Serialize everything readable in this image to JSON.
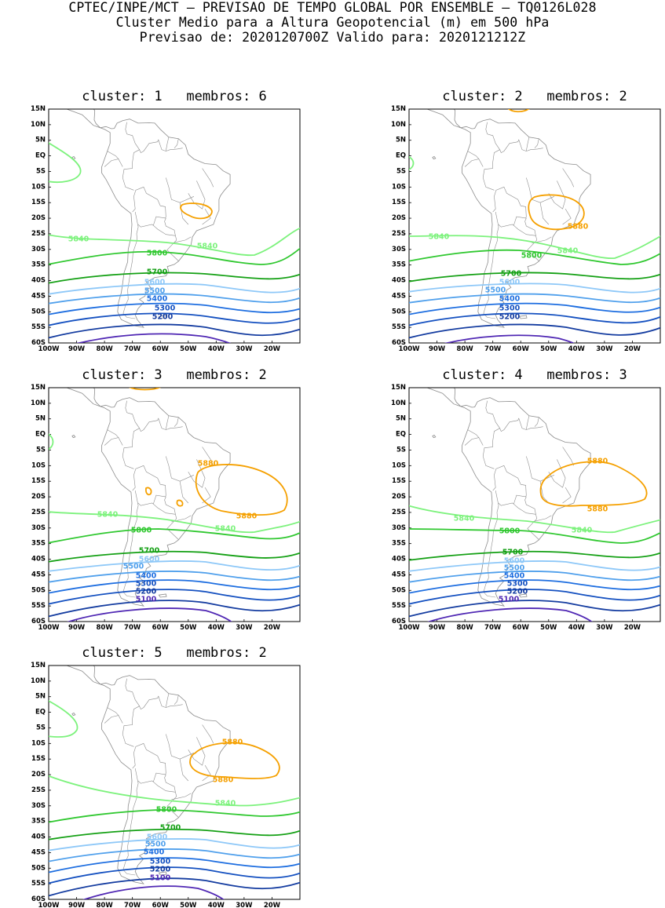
{
  "header": {
    "line1": "CPTEC/INPE/MCT – PREVISAO DE TEMPO GLOBAL POR ENSEMBLE – TQ0126L028",
    "line2": "Cluster Medio para a Altura Geopotencial (m) em 500 hPa",
    "line3": "Previsao de: 2020120700Z    Valido para: 2020121212Z"
  },
  "axes": {
    "lat_ticks": [
      "15N",
      "10N",
      "5N",
      "EQ",
      "5S",
      "10S",
      "15S",
      "20S",
      "25S",
      "30S",
      "35S",
      "40S",
      "45S",
      "50S",
      "55S",
      "60S"
    ],
    "lon_ticks": [
      "100W",
      "90W",
      "80W",
      "70W",
      "60W",
      "50W",
      "40W",
      "30W",
      "20W"
    ]
  },
  "colors": {
    "5880": "#f5a000",
    "5840": "#7cf27c",
    "5800": "#30c830",
    "5700": "#14a014",
    "5600": "#8ec8f8",
    "5500": "#50a0ec",
    "5400": "#1e6ee0",
    "5300": "#1450c0",
    "5200": "#143ca0",
    "5100": "#5028b4",
    "5000": "#8c5ad2",
    "coast": "#8c8c8c"
  },
  "panels": [
    {
      "title": "cluster: 1   membros: 6",
      "labels": {
        "l5840a": "5840",
        "l5840b": "5840",
        "l5800": "5800",
        "l5700": "5700",
        "l5600": "5600",
        "l5500": "5500",
        "l5400": "5400",
        "l5300": "5300",
        "l5200": "5200"
      }
    },
    {
      "title": "cluster: 2   membros: 2",
      "labels": {
        "l5880": "5880",
        "l5840a": "5840",
        "l5840b": "5840",
        "l5800": "5800",
        "l5700": "5700",
        "l5600": "5600",
        "l5500": "5500",
        "l5400": "5400",
        "l5300": "5300",
        "l5200": "5200"
      }
    },
    {
      "title": "cluster: 3   membros: 2",
      "labels": {
        "l5880a": "5880",
        "l5880b": "5880",
        "l5840a": "5840",
        "l5840b": "5840",
        "l5800": "5800",
        "l5700": "5700",
        "l5600": "5600",
        "l5500": "5500",
        "l5400": "5400",
        "l5300": "5300",
        "l5200": "5200",
        "l5100": "5100"
      }
    },
    {
      "title": "cluster: 4   membros: 3",
      "labels": {
        "l5880a": "5880",
        "l5880b": "5880",
        "l5840a": "5840",
        "l5840b": "5840",
        "l5800": "5800",
        "l5700": "5700",
        "l5600": "5600",
        "l5500": "5500",
        "l5400": "5400",
        "l5300": "5300",
        "l5200": "5200",
        "l5100": "5100"
      }
    },
    {
      "title": "cluster: 5   membros: 2",
      "labels": {
        "l5880a": "5880",
        "l5880b": "5880",
        "l5840": "5840",
        "l5800": "5800",
        "l5700": "5700",
        "l5600": "5600",
        "l5500": "5500",
        "l5400": "5400",
        "l5300": "5300",
        "l5200": "5200",
        "l5100": "5100"
      }
    }
  ]
}
